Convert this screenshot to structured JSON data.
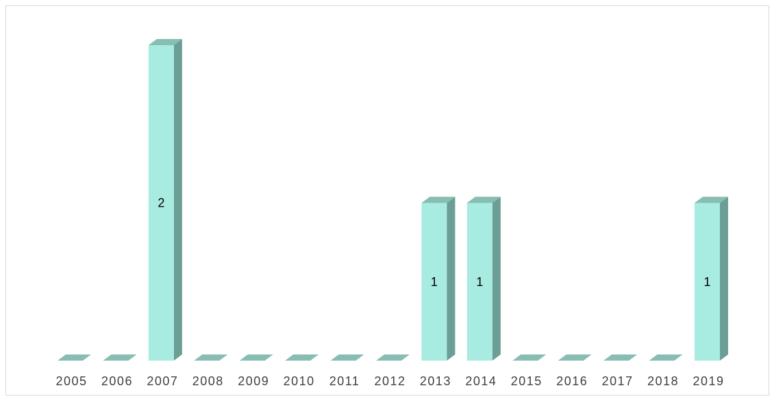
{
  "chart_data": {
    "type": "bar",
    "style": "3d-column",
    "categories": [
      "2005",
      "2006",
      "2007",
      "2008",
      "2009",
      "2010",
      "2011",
      "2012",
      "2013",
      "2014",
      "2015",
      "2016",
      "2017",
      "2018",
      "2019"
    ],
    "values": [
      0,
      0,
      2,
      0,
      0,
      0,
      0,
      0,
      1,
      1,
      0,
      0,
      0,
      0,
      1
    ],
    "show_data_labels_for_nonzero": true,
    "ylim": [
      0,
      2
    ],
    "grid": false,
    "legend": "none",
    "title": "",
    "xlabel": "",
    "ylabel": ""
  },
  "colors": {
    "bar_front": "#a8ebe0",
    "bar_side": "#6b9e94",
    "bar_top": "#88bdb3",
    "tick_text": "#404040",
    "frame_border": "#d9d9d9"
  }
}
